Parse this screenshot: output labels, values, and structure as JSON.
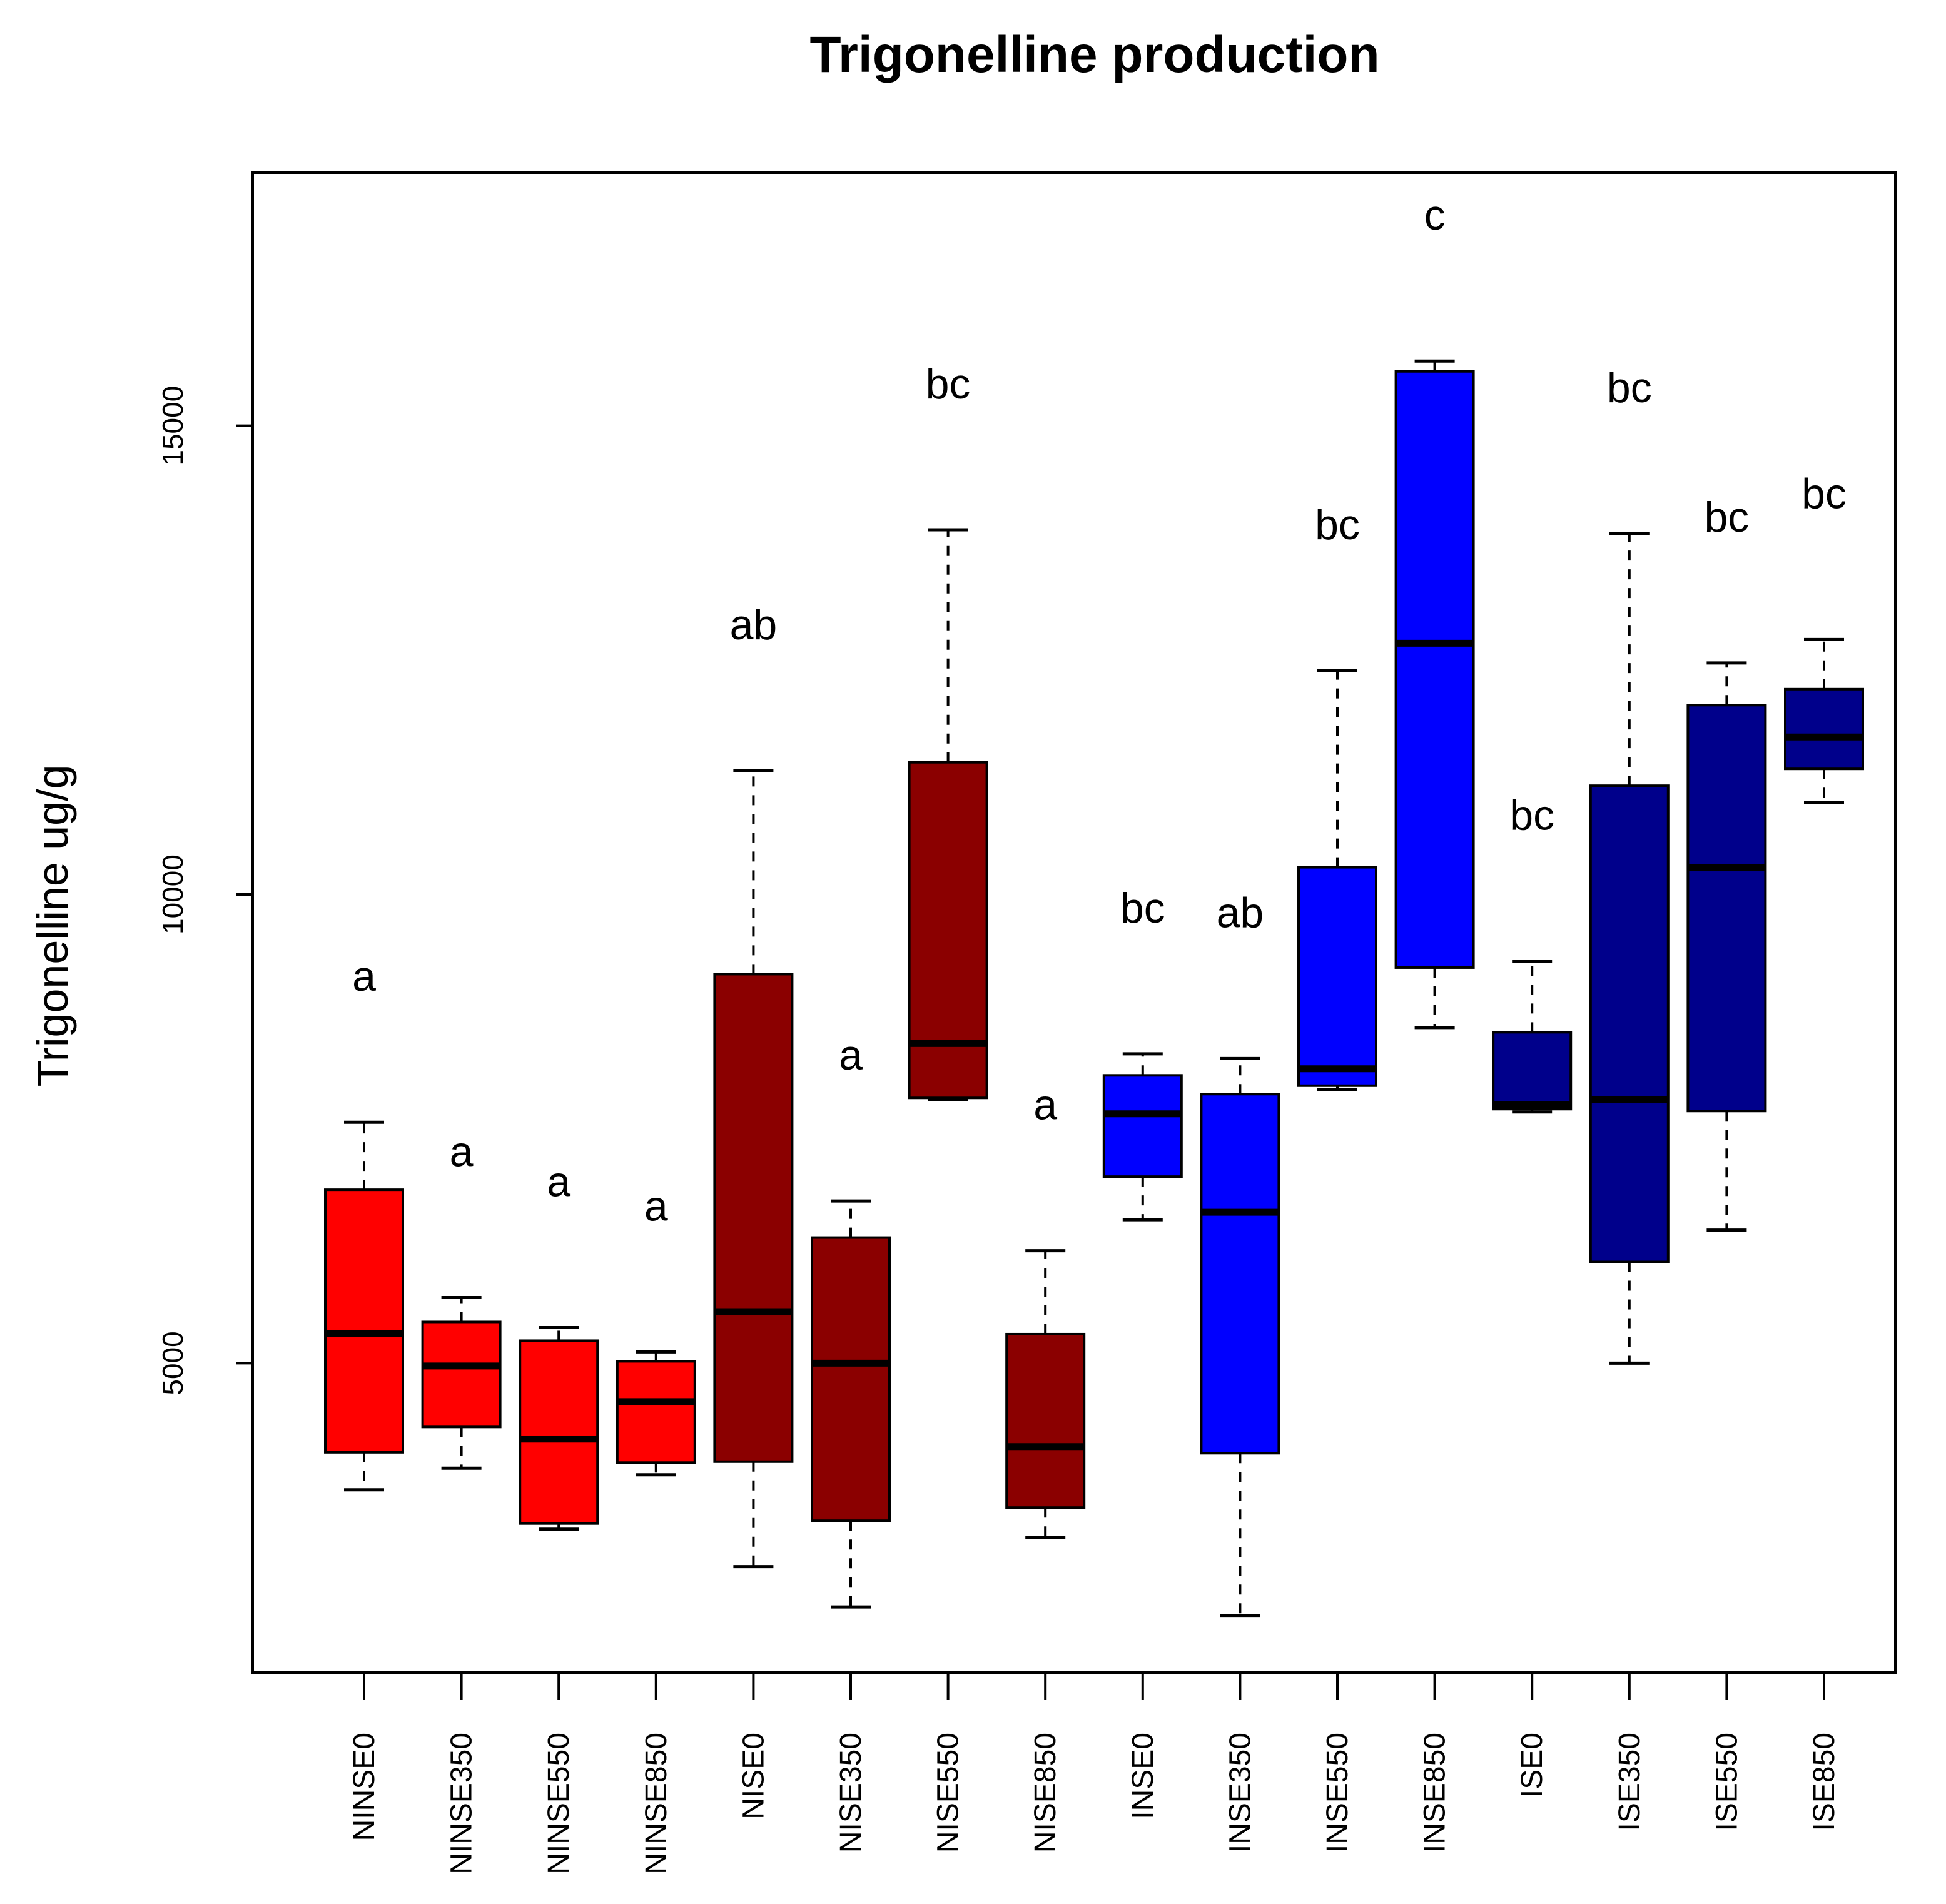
{
  "chart_data": {
    "type": "boxplot",
    "title": "Trigonelline production",
    "xlabel": "",
    "ylabel": "Trigonelline ug/g",
    "ylim": [
      1700,
      17700
    ],
    "yticks": [
      5000,
      10000,
      15000
    ],
    "grid": false,
    "legend": "none",
    "groups": [
      {
        "name": "NINSE0",
        "min": 3650,
        "q1": 4050,
        "median": 5320,
        "q3": 6850,
        "max": 7570,
        "letter": "a",
        "color": "#ff0000"
      },
      {
        "name": "NINSE350",
        "min": 3880,
        "q1": 4320,
        "median": 4970,
        "q3": 5440,
        "max": 5700,
        "letter": "a",
        "color": "#ff0000"
      },
      {
        "name": "NINSE550",
        "min": 3230,
        "q1": 3290,
        "median": 4190,
        "q3": 5240,
        "max": 5380,
        "letter": "a",
        "color": "#ff0000"
      },
      {
        "name": "NINSE850",
        "min": 3810,
        "q1": 3940,
        "median": 4590,
        "q3": 5020,
        "max": 5120,
        "letter": "a",
        "color": "#ff0000"
      },
      {
        "name": "NISE0",
        "min": 2830,
        "q1": 3950,
        "median": 5550,
        "q3": 9150,
        "max": 11320,
        "letter": "ab",
        "color": "#8b0000"
      },
      {
        "name": "NISE350",
        "min": 2400,
        "q1": 3320,
        "median": 5000,
        "q3": 6340,
        "max": 6730,
        "letter": "a",
        "color": "#8b0000"
      },
      {
        "name": "NISE550",
        "min": 7810,
        "q1": 7830,
        "median": 8410,
        "q3": 11410,
        "max": 13890,
        "letter": "bc",
        "color": "#8b0000"
      },
      {
        "name": "NISE850",
        "min": 3140,
        "q1": 3460,
        "median": 4110,
        "q3": 5310,
        "max": 6200,
        "letter": "a",
        "color": "#8b0000"
      },
      {
        "name": "INSE0",
        "min": 6530,
        "q1": 6990,
        "median": 7660,
        "q3": 8070,
        "max": 8300,
        "letter": "bc",
        "color": "#0000ff"
      },
      {
        "name": "INSE350",
        "min": 2310,
        "q1": 4040,
        "median": 6610,
        "q3": 7870,
        "max": 8250,
        "letter": "ab",
        "color": "#0000ff"
      },
      {
        "name": "INSE550",
        "min": 7920,
        "q1": 7960,
        "median": 8140,
        "q3": 10290,
        "max": 12390,
        "letter": "bc",
        "color": "#0000ff"
      },
      {
        "name": "INSE850",
        "min": 8580,
        "q1": 9220,
        "median": 12680,
        "q3": 15580,
        "max": 15690,
        "letter": "c",
        "color": "#0000ff"
      },
      {
        "name": "ISE0",
        "min": 7680,
        "q1": 7710,
        "median": 7760,
        "q3": 8530,
        "max": 9290,
        "letter": "bc",
        "color": "#00008b"
      },
      {
        "name": "ISE350",
        "min": 5000,
        "q1": 6080,
        "median": 7810,
        "q3": 11160,
        "max": 13850,
        "letter": "bc",
        "color": "#00008b"
      },
      {
        "name": "ISE550",
        "min": 6420,
        "q1": 7690,
        "median": 10290,
        "q3": 12020,
        "max": 12470,
        "letter": "bc",
        "color": "#00008b"
      },
      {
        "name": "ISE850",
        "min": 10980,
        "q1": 11340,
        "median": 11680,
        "q3": 12190,
        "max": 12720,
        "letter": "bc",
        "color": "#00008b"
      }
    ]
  }
}
